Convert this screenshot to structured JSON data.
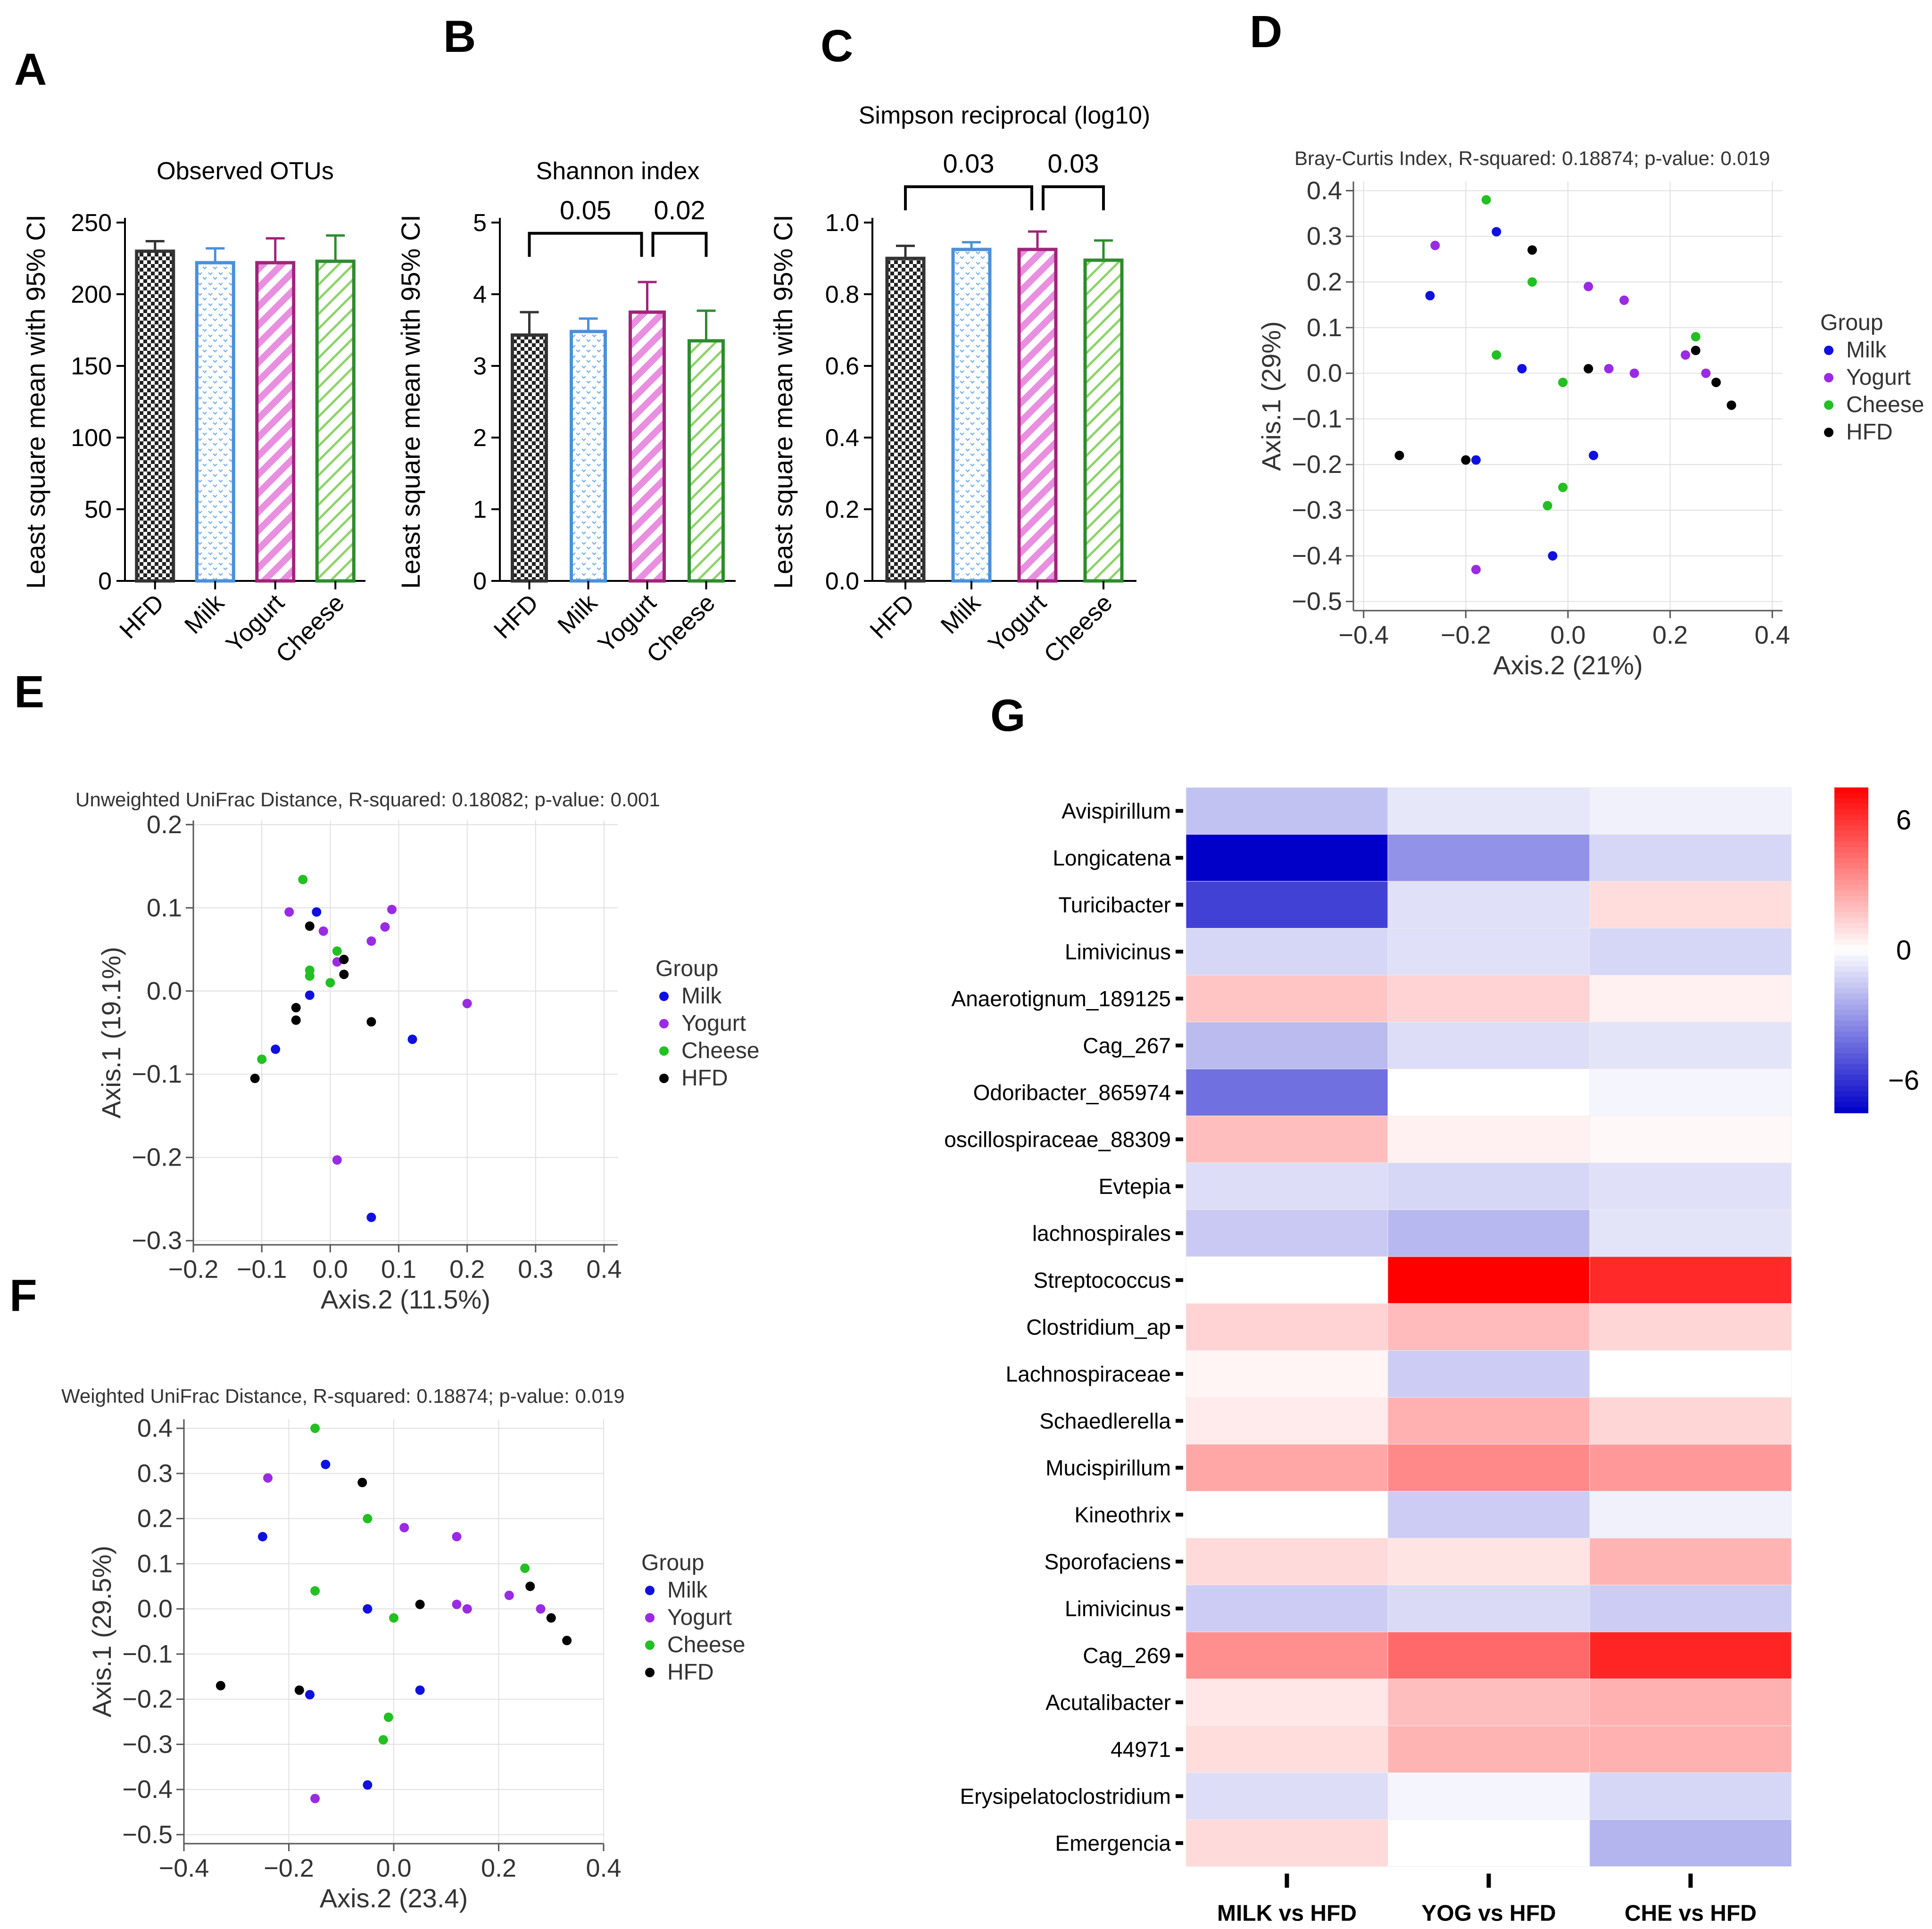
{
  "colors": {
    "HFD": "#333333",
    "Milk": "#4a90d9",
    "Yogurt": "#a0247a",
    "Cheese": "#2e8b2e",
    "Yogurt_fill": "#e98fe0",
    "Cheese_fill": "#8fd36b",
    "Milk_fill": "#7db3e8",
    "dot_Milk": "#1010e0",
    "dot_Yogurt": "#9a2be2",
    "dot_Cheese": "#22c022",
    "dot_HFD": "#000000",
    "heat_neg": "#0000c8",
    "heat_pos": "#ff0000"
  },
  "panels": {
    "A": "A",
    "B": "B",
    "C": "C",
    "D": "D",
    "E": "E",
    "F": "F",
    "G": "G"
  },
  "chart_data": [
    {
      "id": "A",
      "type": "bar",
      "title": "Observed OTUs",
      "ylabel": "Least square mean with 95% CI",
      "categories": [
        "HFD",
        "Milk",
        "Yogurt",
        "Cheese"
      ],
      "values": [
        230,
        222,
        222,
        223
      ],
      "errors": [
        7,
        10,
        17,
        18
      ],
      "ylim": [
        0,
        250
      ],
      "yticks": [
        "0",
        "50",
        "100",
        "150",
        "200",
        "250"
      ],
      "yticks_val": [
        0,
        50,
        100,
        150,
        200,
        250
      ],
      "brackets": []
    },
    {
      "id": "B",
      "type": "bar",
      "title": "Shannon index",
      "ylabel": "Least square mean with 95% CI",
      "categories": [
        "HFD",
        "Milk",
        "Yogurt",
        "Cheese"
      ],
      "values": [
        3.43,
        3.48,
        3.75,
        3.35
      ],
      "errors": [
        0.32,
        0.18,
        0.42,
        0.42
      ],
      "ylim": [
        0,
        5
      ],
      "yticks": [
        "0",
        "1",
        "2",
        "3",
        "4",
        "5"
      ],
      "yticks_val": [
        0,
        1,
        2,
        3,
        4,
        5
      ],
      "brackets": [
        {
          "from": 0,
          "to": 2,
          "label": "0.05",
          "y": 4.85
        },
        {
          "from": 2,
          "to": 3,
          "label": "0.02",
          "y": 4.85
        }
      ]
    },
    {
      "id": "C",
      "type": "bar",
      "title": "Simpson reciprocal (log10)",
      "ylabel": "Least square mean with 95% CI",
      "categories": [
        "HFD",
        "Milk",
        "Yogurt",
        "Cheese"
      ],
      "values": [
        0.9,
        0.925,
        0.925,
        0.895
      ],
      "errors": [
        0.035,
        0.02,
        0.05,
        0.055
      ],
      "ylim": [
        0,
        1.0
      ],
      "yticks": [
        "0.0",
        "0.2",
        "0.4",
        "0.6",
        "0.8",
        "1.0"
      ],
      "yticks_val": [
        0,
        0.2,
        0.4,
        0.6,
        0.8,
        1.0
      ],
      "brackets": [
        {
          "from": 0,
          "to": 2,
          "label": "0.03",
          "y": 1.1
        },
        {
          "from": 2,
          "to": 3,
          "label": "0.03",
          "y": 1.1
        }
      ]
    },
    {
      "id": "D",
      "type": "scatter",
      "title": "Bray-Curtis Index, R-squared: 0.18874; p-value: 0.019",
      "xlabel": "Axis.2 (21%)",
      "ylabel": "Axis.1 (29%)",
      "xlim": [
        -0.42,
        0.42
      ],
      "ylim": [
        -0.52,
        0.42
      ],
      "xticks": [
        -0.4,
        -0.2,
        0.0,
        0.2,
        0.4
      ],
      "xtick_labels": [
        "−0.4",
        "−0.2",
        "0.0",
        "0.2",
        "0.4"
      ],
      "yticks": [
        0.4,
        0.3,
        0.2,
        0.1,
        0.0,
        -0.1,
        -0.2,
        -0.3,
        -0.4,
        -0.5
      ],
      "ytick_labels": [
        "0.4",
        "0.3",
        "0.2",
        "0.1",
        "0.0",
        "−0.1",
        "−0.2",
        "−0.3",
        "−0.4",
        "−0.5"
      ],
      "legend_title": "Group",
      "legend": [
        "Milk",
        "Yogurt",
        "Cheese",
        "HFD"
      ],
      "series": [
        {
          "name": "Milk",
          "points": [
            [
              -0.14,
              0.31
            ],
            [
              -0.27,
              0.17
            ],
            [
              -0.09,
              0.01
            ],
            [
              0.05,
              -0.18
            ],
            [
              -0.18,
              -0.19
            ],
            [
              -0.03,
              -0.4
            ]
          ]
        },
        {
          "name": "Yogurt",
          "points": [
            [
              -0.26,
              0.28
            ],
            [
              0.04,
              0.19
            ],
            [
              0.11,
              0.16
            ],
            [
              0.08,
              0.01
            ],
            [
              0.13,
              0.0
            ],
            [
              0.23,
              0.04
            ],
            [
              0.27,
              0.0
            ],
            [
              -0.18,
              -0.43
            ]
          ]
        },
        {
          "name": "Cheese",
          "points": [
            [
              -0.16,
              0.38
            ],
            [
              -0.07,
              0.2
            ],
            [
              -0.14,
              0.04
            ],
            [
              -0.01,
              -0.02
            ],
            [
              0.25,
              0.08
            ],
            [
              -0.01,
              -0.25
            ],
            [
              -0.04,
              -0.29
            ]
          ]
        },
        {
          "name": "HFD",
          "points": [
            [
              -0.07,
              0.27
            ],
            [
              0.04,
              0.01
            ],
            [
              0.25,
              0.05
            ],
            [
              0.29,
              -0.02
            ],
            [
              0.32,
              -0.07
            ],
            [
              -0.33,
              -0.18
            ],
            [
              -0.2,
              -0.19
            ]
          ]
        }
      ]
    },
    {
      "id": "E",
      "type": "scatter",
      "title": "Unweighted UniFrac Distance, R-squared: 0.18082; p-value: 0.001",
      "xlabel": "Axis.2 (11.5%)",
      "ylabel": "Axis.1 (19.1%)",
      "xlim": [
        -0.2,
        0.42
      ],
      "ylim": [
        -0.305,
        0.205
      ],
      "xticks": [
        -0.2,
        -0.1,
        0.0,
        0.1,
        0.2,
        0.3,
        0.4
      ],
      "xtick_labels": [
        "−0.2",
        "−0.1",
        "0.0",
        "0.1",
        "0.2",
        "0.3",
        "0.4"
      ],
      "yticks": [
        0.2,
        0.1,
        0.0,
        -0.1,
        -0.2,
        -0.3
      ],
      "ytick_labels": [
        "0.2",
        "0.1",
        "0.0",
        "−0.1",
        "−0.2",
        "−0.3"
      ],
      "legend_title": "Group",
      "legend": [
        "Milk",
        "Yogurt",
        "Cheese",
        "HFD"
      ],
      "series": [
        {
          "name": "Milk",
          "points": [
            [
              -0.02,
              0.095
            ],
            [
              -0.03,
              -0.005
            ],
            [
              -0.08,
              -0.07
            ],
            [
              0.12,
              -0.058
            ],
            [
              0.06,
              -0.272
            ]
          ]
        },
        {
          "name": "Yogurt",
          "points": [
            [
              -0.06,
              0.095
            ],
            [
              -0.01,
              0.072
            ],
            [
              0.09,
              0.098
            ],
            [
              0.08,
              0.077
            ],
            [
              0.06,
              0.06
            ],
            [
              0.01,
              0.035
            ],
            [
              0.2,
              -0.015
            ],
            [
              0.01,
              -0.203
            ]
          ]
        },
        {
          "name": "Cheese",
          "points": [
            [
              -0.04,
              0.134
            ],
            [
              0.01,
              0.048
            ],
            [
              -0.03,
              0.025
            ],
            [
              -0.03,
              0.018
            ],
            [
              0.0,
              0.01
            ],
            [
              -0.1,
              -0.082
            ]
          ]
        },
        {
          "name": "HFD",
          "points": [
            [
              -0.03,
              0.078
            ],
            [
              0.02,
              0.038
            ],
            [
              0.02,
              0.02
            ],
            [
              -0.05,
              -0.02
            ],
            [
              -0.05,
              -0.035
            ],
            [
              0.06,
              -0.037
            ],
            [
              -0.11,
              -0.105
            ]
          ]
        }
      ]
    },
    {
      "id": "F",
      "type": "scatter",
      "title": "Weighted UniFrac Distance, R-squared: 0.18874; p-value: 0.019",
      "xlabel": "Axis.2 (23.4)",
      "ylabel": "Axis.1 (29.5%)",
      "xlim": [
        -0.4,
        0.4
      ],
      "ylim": [
        -0.52,
        0.42
      ],
      "xticks": [
        -0.4,
        -0.2,
        0.0,
        0.2,
        0.4
      ],
      "xtick_labels": [
        "−0.4",
        "−0.2",
        "0.0",
        "0.2",
        "0.4"
      ],
      "yticks": [
        0.4,
        0.3,
        0.2,
        0.1,
        0.0,
        -0.1,
        -0.2,
        -0.3,
        -0.4,
        -0.5
      ],
      "ytick_labels": [
        "0.4",
        "0.3",
        "0.2",
        "0.1",
        "0.0",
        "−0.1",
        "−0.2",
        "−0.3",
        "−0.4",
        "−0.5"
      ],
      "legend_title": "Group",
      "legend": [
        "Milk",
        "Yogurt",
        "Cheese",
        "HFD"
      ],
      "series": [
        {
          "name": "Milk",
          "points": [
            [
              -0.13,
              0.32
            ],
            [
              -0.25,
              0.16
            ],
            [
              -0.05,
              0.0
            ],
            [
              0.05,
              -0.18
            ],
            [
              -0.16,
              -0.19
            ],
            [
              -0.05,
              -0.39
            ]
          ]
        },
        {
          "name": "Yogurt",
          "points": [
            [
              -0.24,
              0.29
            ],
            [
              0.02,
              0.18
            ],
            [
              0.12,
              0.16
            ],
            [
              0.12,
              0.01
            ],
            [
              0.14,
              0.0
            ],
            [
              0.22,
              0.03
            ],
            [
              0.28,
              0.0
            ],
            [
              -0.15,
              -0.42
            ]
          ]
        },
        {
          "name": "Cheese",
          "points": [
            [
              -0.15,
              0.4
            ],
            [
              -0.05,
              0.2
            ],
            [
              -0.15,
              0.04
            ],
            [
              0.0,
              -0.02
            ],
            [
              0.25,
              0.09
            ],
            [
              -0.01,
              -0.24
            ],
            [
              -0.02,
              -0.29
            ]
          ]
        },
        {
          "name": "HFD",
          "points": [
            [
              -0.06,
              0.28
            ],
            [
              0.05,
              0.01
            ],
            [
              0.26,
              0.05
            ],
            [
              0.3,
              -0.02
            ],
            [
              0.33,
              -0.07
            ],
            [
              -0.33,
              -0.17
            ],
            [
              -0.18,
              -0.18
            ]
          ]
        }
      ]
    },
    {
      "id": "G",
      "type": "heatmap",
      "columns": [
        "MILK vs HFD",
        "YOG vs HFD",
        "CHE vs HFD"
      ],
      "rows": [
        "Avispirillum",
        "Longicatena",
        "Turicibacter",
        "Limivicinus",
        "Anaerotignum_189125",
        "Cag_267",
        "Odoribacter_865974",
        "oscillospiraceae_88309",
        "Evtepia",
        "lachnospirales",
        "Streptococcus",
        "Clostridium_ap",
        "Lachnospiraceae",
        "Schaedlerella",
        "Mucispirillum",
        "Kineothrix",
        "Sporofaciens",
        "Limivicinus",
        "Cag_269",
        "Acutalibacter",
        "44971",
        "Erysipelatoclostridium",
        "Emergencia"
      ],
      "values": [
        [
          -1.8,
          -0.7,
          -0.4
        ],
        [
          -7.5,
          -3.2,
          -1.2
        ],
        [
          -5.6,
          -0.9,
          1.0
        ],
        [
          -1.2,
          -0.9,
          -1.2
        ],
        [
          1.7,
          1.3,
          0.4
        ],
        [
          -2.0,
          -1.0,
          -0.8
        ],
        [
          -4.2,
          0.0,
          -0.3
        ],
        [
          1.9,
          0.4,
          0.2
        ],
        [
          -1.0,
          -1.2,
          -0.9
        ],
        [
          -1.6,
          -2.1,
          -0.8
        ],
        [
          0.0,
          7.5,
          6.3
        ],
        [
          1.3,
          2.0,
          1.2
        ],
        [
          0.3,
          -1.5,
          0.0
        ],
        [
          0.6,
          2.3,
          1.2
        ],
        [
          2.6,
          3.5,
          3.0
        ],
        [
          0.0,
          -1.5,
          -0.4
        ],
        [
          1.1,
          0.8,
          2.2
        ],
        [
          -1.5,
          -1.1,
          -1.5
        ],
        [
          3.3,
          4.4,
          6.4
        ],
        [
          0.7,
          1.9,
          2.3
        ],
        [
          1.0,
          2.2,
          2.3
        ],
        [
          -1.0,
          -0.3,
          -1.2
        ],
        [
          1.1,
          0.0,
          -2.2
        ]
      ],
      "colorbar": {
        "min": -7.5,
        "max": 7.5,
        "ticks": [
          6,
          0,
          -6
        ],
        "tick_labels": [
          "6",
          "0",
          "−6"
        ]
      }
    }
  ]
}
